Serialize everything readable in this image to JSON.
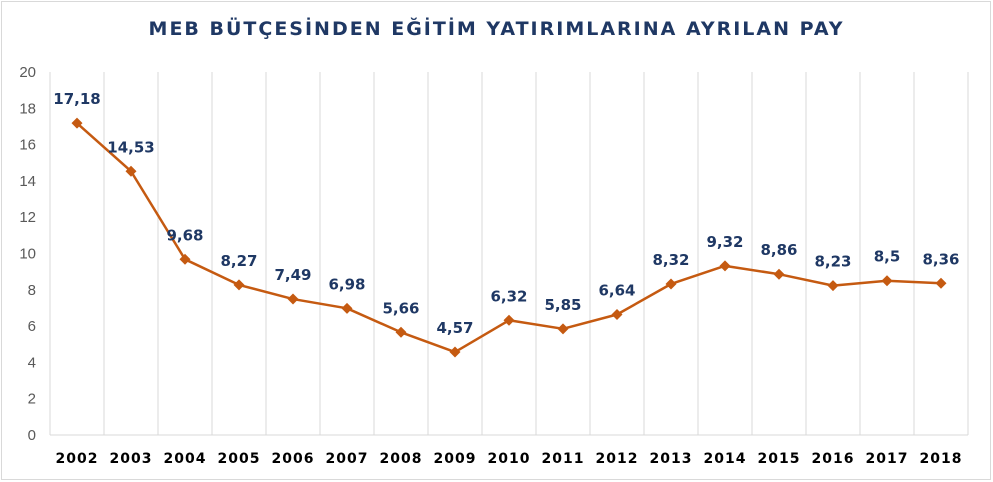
{
  "chart_data": {
    "type": "line",
    "title": "MEB BÜTÇESİNDEN EĞİTİM YATIRIMLARINA AYRILAN PAY",
    "xlabel": "",
    "ylabel": "",
    "categories": [
      "2002",
      "2003",
      "2004",
      "2005",
      "2006",
      "2007",
      "2008",
      "2009",
      "2010",
      "2011",
      "2012",
      "2013",
      "2014",
      "2015",
      "2016",
      "2017",
      "2018"
    ],
    "series": [
      {
        "values": [
          17.18,
          14.53,
          9.68,
          8.27,
          7.49,
          6.98,
          5.66,
          4.57,
          6.32,
          5.85,
          6.64,
          8.32,
          9.32,
          8.86,
          8.23,
          8.5,
          8.36
        ],
        "labels": [
          "17,18",
          "14,53",
          "9,68",
          "8,27",
          "7,49",
          "6,98",
          "5,66",
          "4,57",
          "6,32",
          "5,85",
          "6,64",
          "8,32",
          "9,32",
          "8,86",
          "8,23",
          "8,5",
          "8,36"
        ],
        "color": "#c55a11"
      }
    ],
    "ylim": [
      0,
      20
    ],
    "yticks": [
      0,
      2,
      4,
      6,
      8,
      10,
      12,
      14,
      16,
      18,
      20
    ],
    "grid": "vertical",
    "legend": "none",
    "colors": {
      "line": "#c55a11",
      "label": "#1f3864",
      "grid": "#d9d9d9"
    }
  }
}
